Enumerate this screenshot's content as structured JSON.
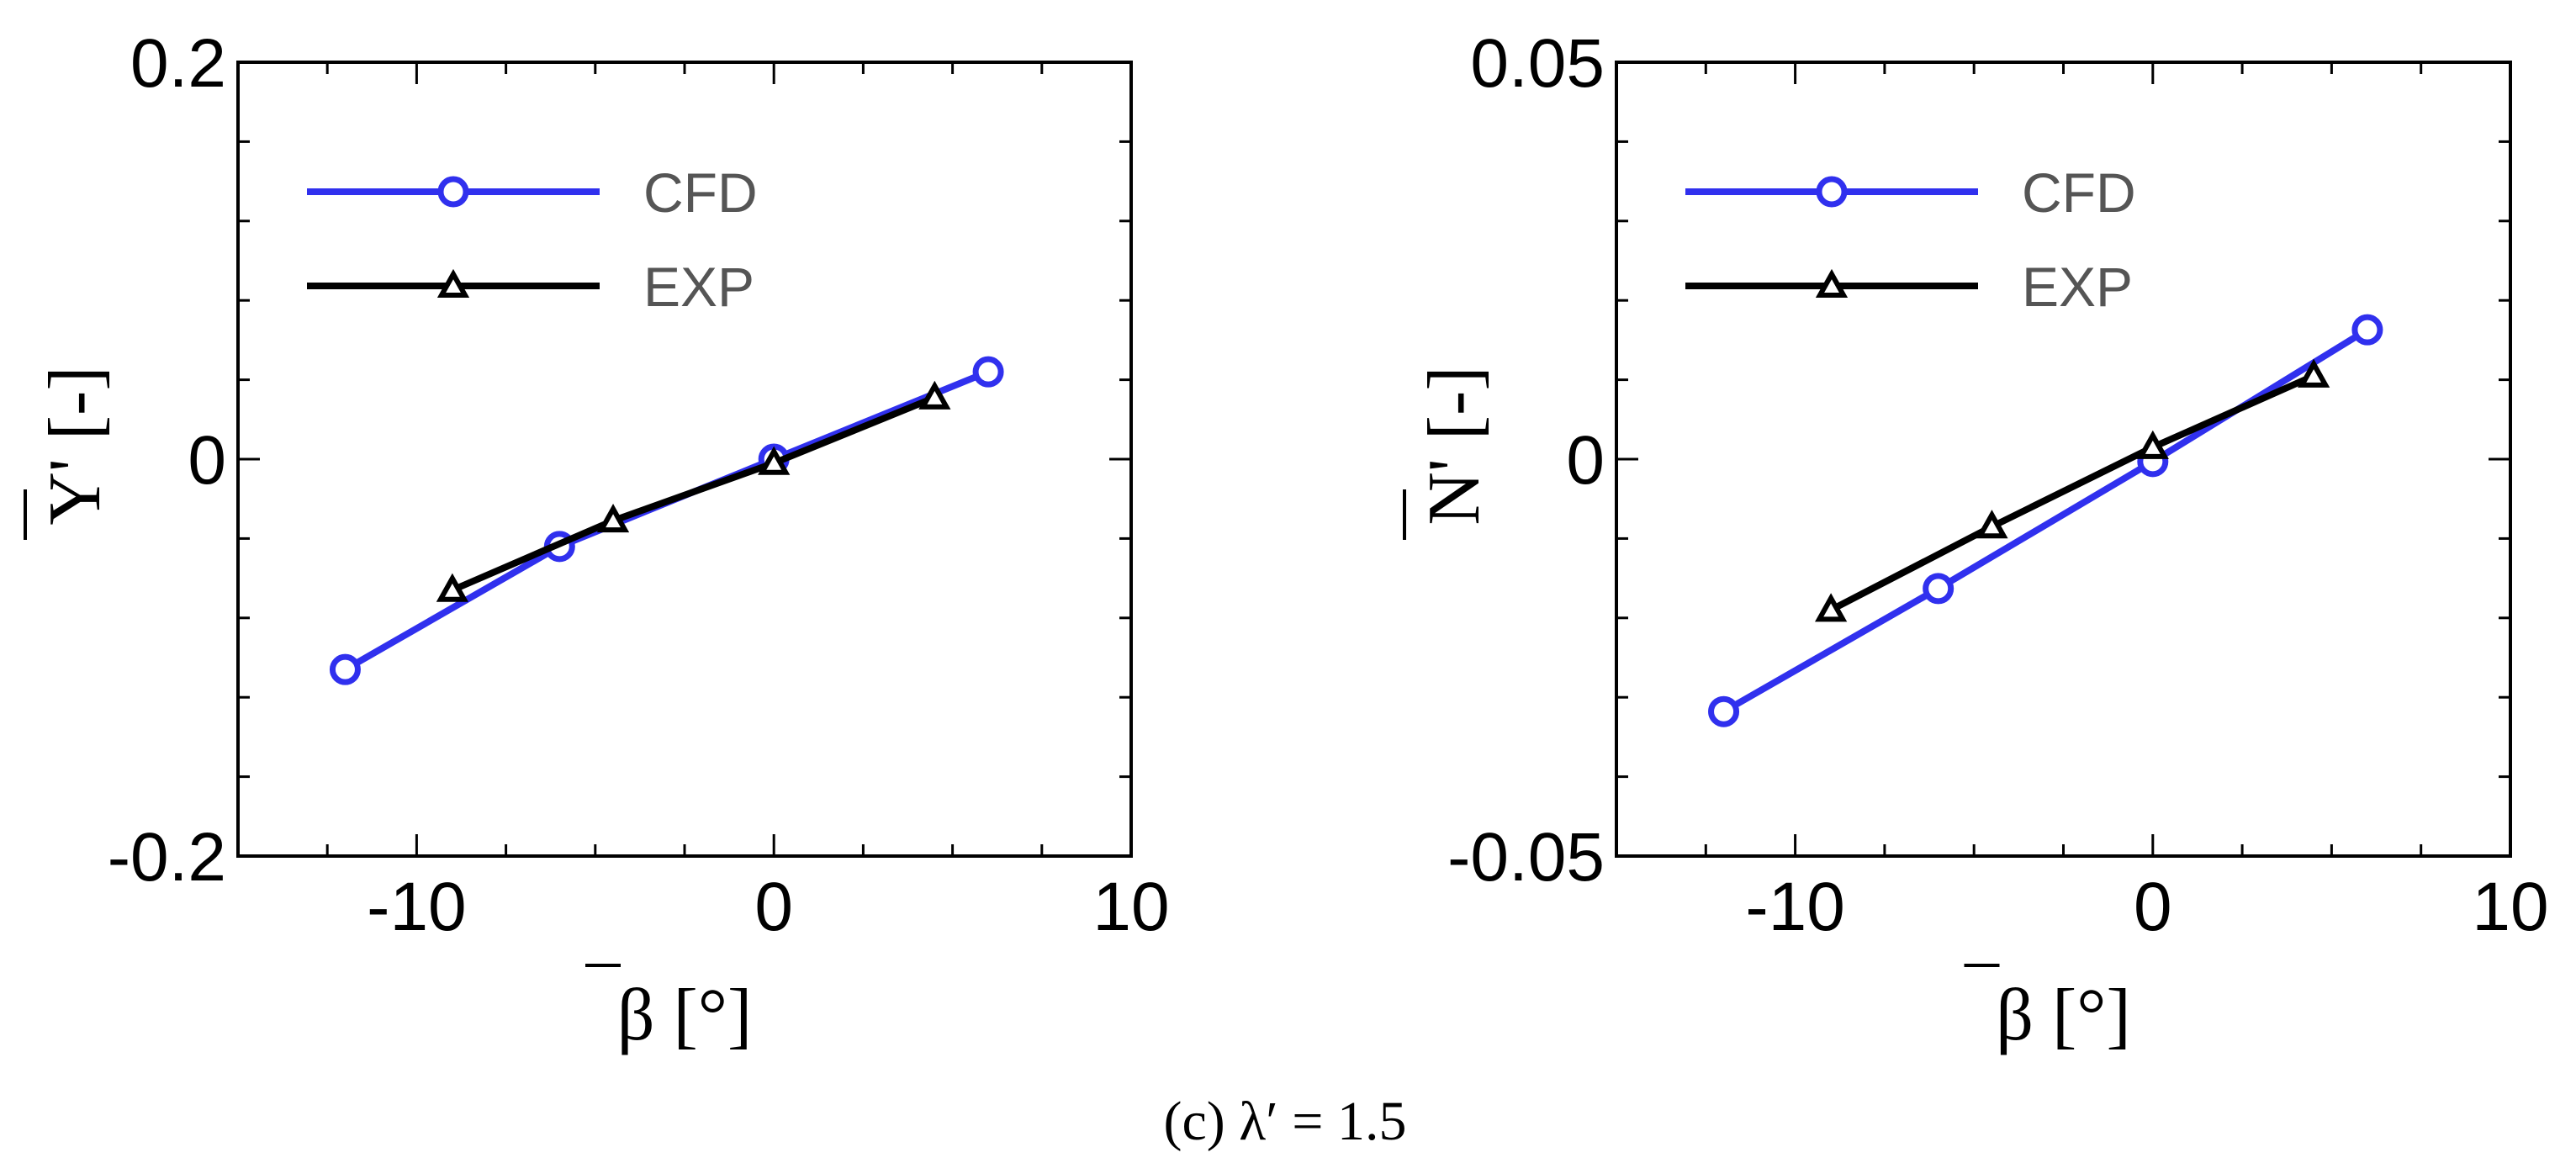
{
  "chart_data": [
    {
      "type": "line",
      "title": "",
      "xlabel": "β [°]",
      "ylabel": "Y' [-]",
      "xlim": [
        -15,
        10
      ],
      "ylim": [
        -0.2,
        0.2
      ],
      "xticks": [
        -10,
        0,
        10
      ],
      "xtick_labels": [
        "-10",
        "0",
        "10"
      ],
      "yticks": [
        -0.2,
        0,
        0.2
      ],
      "ytick_labels": [
        "-0.2",
        "0",
        "0.2"
      ],
      "grid": false,
      "legend_position": "top-left",
      "series": [
        {
          "name": "CFD",
          "color": "#3030ee",
          "marker": "circle",
          "x": [
            -12,
            -6,
            0,
            6
          ],
          "y": [
            -0.106,
            -0.044,
            0.0,
            0.044
          ]
        },
        {
          "name": "EXP",
          "color": "#000000",
          "marker": "triangle",
          "x": [
            -9,
            -4.5,
            0,
            4.5
          ],
          "y": [
            -0.066,
            -0.031,
            -0.002,
            0.031
          ]
        }
      ]
    },
    {
      "type": "line",
      "title": "",
      "xlabel": "β [°]",
      "ylabel": "N' [-]",
      "xlim": [
        -15,
        10
      ],
      "ylim": [
        -0.05,
        0.05
      ],
      "xticks": [
        -10,
        0,
        10
      ],
      "xtick_labels": [
        "-10",
        "0",
        "10"
      ],
      "yticks": [
        -0.05,
        0,
        0.05
      ],
      "ytick_labels": [
        "-0.05",
        "0",
        "0.05"
      ],
      "grid": false,
      "legend_position": "top-left",
      "series": [
        {
          "name": "CFD",
          "color": "#3030ee",
          "marker": "circle",
          "x": [
            -12,
            -6,
            0,
            6
          ],
          "y": [
            -0.0318,
            -0.0163,
            -0.0003,
            0.0163
          ]
        },
        {
          "name": "EXP",
          "color": "#000000",
          "marker": "triangle",
          "x": [
            -9,
            -4.5,
            0,
            4.5
          ],
          "y": [
            -0.019,
            -0.0085,
            0.0015,
            0.0105
          ]
        }
      ]
    }
  ],
  "caption": "(c)  λ′ = 1.5"
}
